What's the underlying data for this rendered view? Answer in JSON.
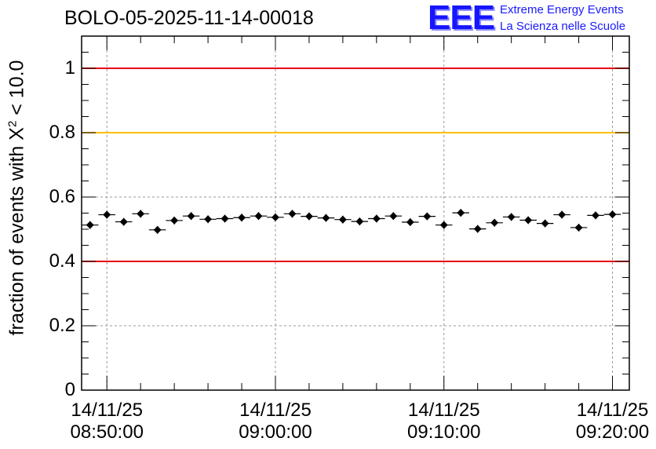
{
  "title": "BOLO-05-2025-11-14-00018",
  "logo": {
    "mark": "EEE",
    "line1": "Extreme Energy Events",
    "line2": "La Scienza nelle Scuole"
  },
  "chart_data": {
    "type": "scatter",
    "title": "BOLO-05-2025-11-14-00018",
    "ylabel_prefix": "fraction of events with ",
    "ylabel_symbol": "X",
    "ylabel_sup": "2",
    "ylabel_suffix": " < 10.0",
    "xlabel": "",
    "x_unit": "minutes since 14/11/25 08:50:00",
    "xlim": [
      -1.5,
      31.0
    ],
    "ylim": [
      0,
      1.1
    ],
    "yticks": [
      {
        "value": 0,
        "label": "0"
      },
      {
        "value": 0.2,
        "label": "0.2"
      },
      {
        "value": 0.4,
        "label": "0.4"
      },
      {
        "value": 0.6,
        "label": "0.6"
      },
      {
        "value": 0.8,
        "label": "0.8"
      },
      {
        "value": 1,
        "label": "1"
      }
    ],
    "xticks": [
      {
        "value": 0,
        "date": "14/11/25",
        "time": "08:50:00"
      },
      {
        "value": 10,
        "date": "14/11/25",
        "time": "09:00:00"
      },
      {
        "value": 20,
        "date": "14/11/25",
        "time": "09:10:00"
      },
      {
        "value": 30,
        "date": "14/11/25",
        "time": "09:20:00"
      }
    ],
    "reference_lines": [
      {
        "value": 1.0,
        "color": "#e8000b"
      },
      {
        "value": 0.8,
        "color": "#ffc000"
      },
      {
        "value": 0.4,
        "color": "#e8000b"
      }
    ],
    "grid": true,
    "bin_width": 1.0,
    "series": [
      {
        "name": "fraction",
        "color": "#000000",
        "x": [
          -1,
          0,
          1,
          2,
          3,
          4,
          5,
          6,
          7,
          8,
          9,
          10,
          11,
          12,
          13,
          14,
          15,
          16,
          17,
          18,
          19,
          20,
          21,
          22,
          23,
          24,
          25,
          26,
          27,
          28,
          29,
          30
        ],
        "values": [
          0.513,
          0.545,
          0.523,
          0.548,
          0.498,
          0.527,
          0.541,
          0.531,
          0.533,
          0.536,
          0.541,
          0.537,
          0.548,
          0.54,
          0.535,
          0.53,
          0.524,
          0.533,
          0.541,
          0.522,
          0.54,
          0.513,
          0.551,
          0.501,
          0.52,
          0.538,
          0.528,
          0.518,
          0.545,
          0.505,
          0.543,
          0.546
        ],
        "errors": [
          0.012,
          0.012,
          0.012,
          0.012,
          0.012,
          0.012,
          0.012,
          0.012,
          0.012,
          0.012,
          0.012,
          0.012,
          0.012,
          0.012,
          0.012,
          0.012,
          0.012,
          0.012,
          0.012,
          0.012,
          0.012,
          0.012,
          0.012,
          0.012,
          0.012,
          0.012,
          0.012,
          0.012,
          0.012,
          0.012,
          0.012,
          0.012
        ]
      }
    ]
  }
}
